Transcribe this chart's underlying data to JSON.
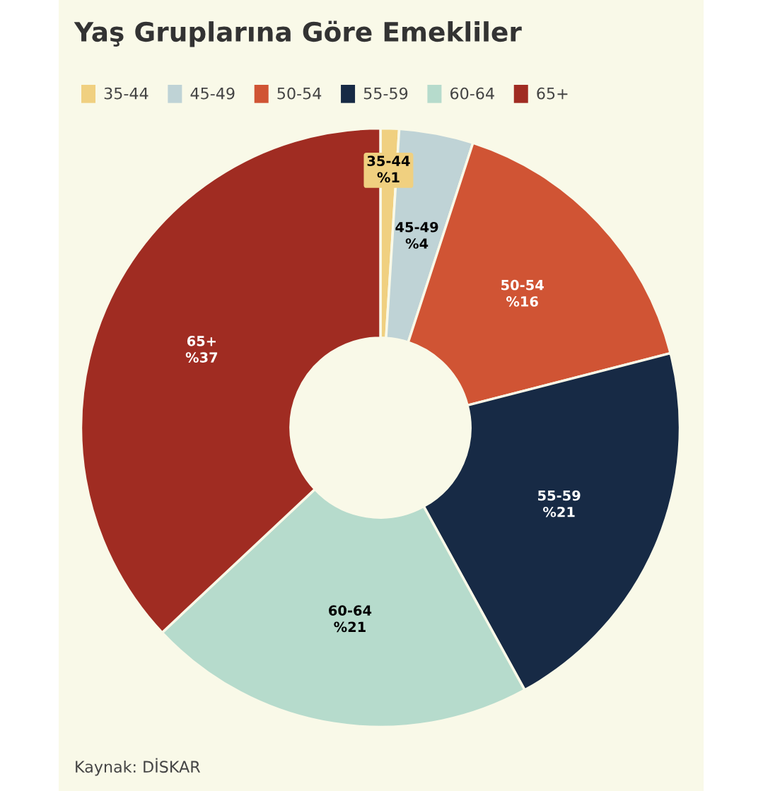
{
  "chart_data": {
    "type": "donut",
    "title": "Yaş Gruplarına Göre Emekliler",
    "categories": [
      "35-44",
      "45-49",
      "50-54",
      "55-59",
      "60-64",
      "65+"
    ],
    "values": [
      1,
      4,
      16,
      21,
      21,
      37
    ],
    "value_labels": [
      "%1",
      "%4",
      "%16",
      "%21",
      "%21",
      "%37"
    ],
    "colors": [
      "#f0d080",
      "#bfd3d6",
      "#d05434",
      "#172a45",
      "#b6dbcc",
      "#a02c22"
    ],
    "legend": "top left",
    "annotations": [
      "Kaynak: DİSKAR"
    ]
  }
}
